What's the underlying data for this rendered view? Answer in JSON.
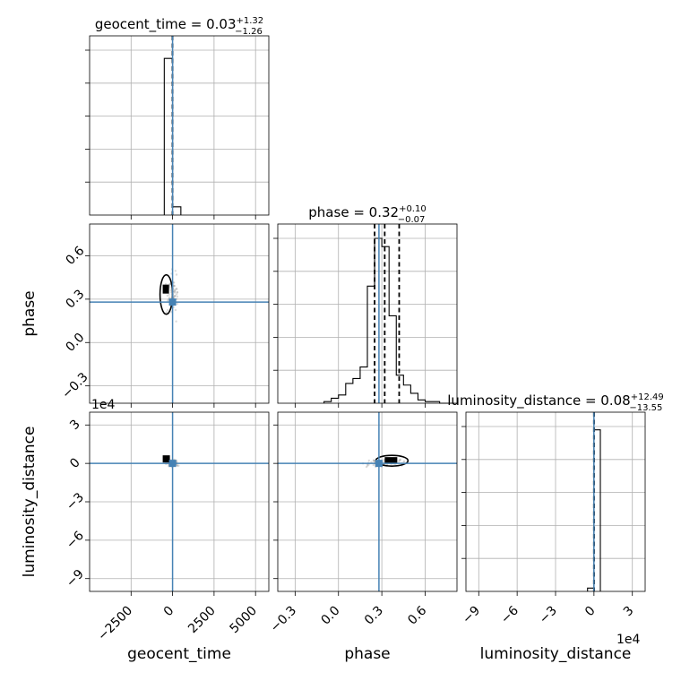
{
  "chart_data": {
    "type": "corner",
    "parameters": [
      "geocent_time",
      "phase",
      "luminosity_distance"
    ],
    "truths": {
      "geocent_time": 0,
      "phase": 0.28,
      "luminosity_distance": 0
    },
    "titles": [
      {
        "param": "geocent_time",
        "base": "geocent_time = 0.03",
        "plus": "+1.32",
        "minus": "−1.26"
      },
      {
        "param": "phase",
        "base": "phase = 0.32",
        "plus": "+0.10",
        "minus": "−0.07"
      },
      {
        "param": "luminosity_distance",
        "base": "luminosity_distance = 0.08",
        "plus": "+12.49",
        "minus": "−13.55"
      }
    ],
    "axis_labels": {
      "x": [
        "geocent_time",
        "phase",
        "luminosity_distance"
      ],
      "y": [
        "phase",
        "luminosity_distance"
      ]
    },
    "offset_text": {
      "row2_y": "1e4",
      "col2_x": "1e4"
    },
    "ranges": {
      "geocent_time": [
        -5000,
        5800
      ],
      "phase": [
        -0.42,
        0.82
      ],
      "luminosity_distance": [
        -100000,
        40000
      ]
    },
    "ticks": {
      "geocent_time": {
        "values": [
          -2500,
          0,
          2500,
          5000
        ],
        "labels": [
          "−2500",
          "0",
          "2500",
          "5000"
        ]
      },
      "phase": {
        "values": [
          -0.3,
          0.0,
          0.3,
          0.6
        ],
        "labels": [
          "−0.3",
          "0.0",
          "0.3",
          "0.6"
        ]
      },
      "luminosity_distance": {
        "values": [
          -90000,
          -60000,
          -30000,
          0,
          30000
        ],
        "labels": [
          "−9",
          "−6",
          "−3",
          "0",
          "3"
        ]
      }
    },
    "histograms": {
      "geocent_time": {
        "edges": [
          -500,
          0,
          500
        ],
        "counts": [
          0.95,
          0.05
        ],
        "quantiles": [
          -1.23,
          0.03,
          1.35
        ]
      },
      "phase": {
        "edges": [
          -0.1,
          -0.05,
          0.0,
          0.05,
          0.1,
          0.15,
          0.2,
          0.25,
          0.3,
          0.35,
          0.4,
          0.45,
          0.5,
          0.55,
          0.6,
          0.65,
          0.7,
          0.75,
          0.8
        ],
        "counts": [
          0.01,
          0.03,
          0.05,
          0.12,
          0.15,
          0.22,
          0.71,
          1.0,
          0.95,
          0.53,
          0.17,
          0.11,
          0.06,
          0.02,
          0.01,
          0.01,
          0.0,
          0.0
        ],
        "quantiles": [
          0.25,
          0.32,
          0.42
        ]
      },
      "luminosity_distance": {
        "edges": [
          -5000,
          0,
          5000
        ],
        "counts": [
          0.02,
          0.98
        ],
        "quantiles": [
          -13.47,
          0.08,
          12.57
        ]
      }
    },
    "grid": true
  }
}
